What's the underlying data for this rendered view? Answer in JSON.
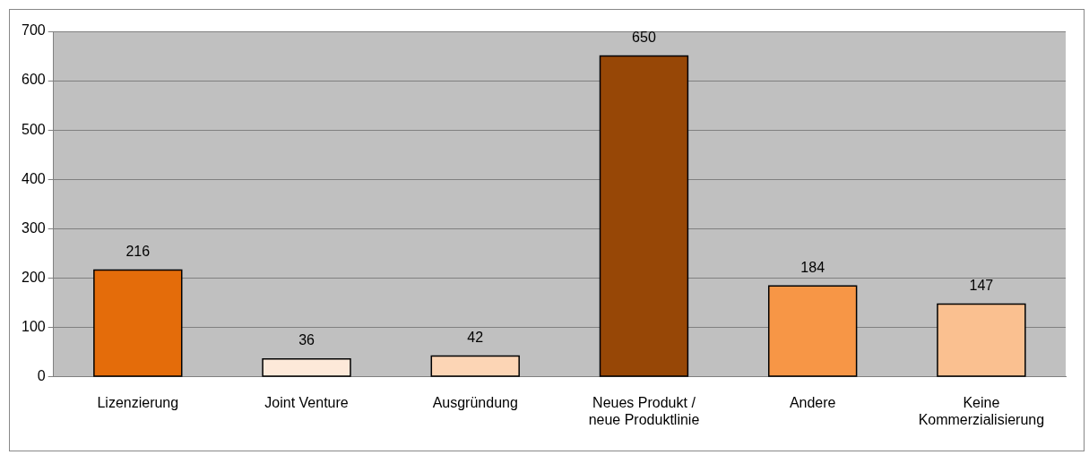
{
  "chart_data": {
    "type": "bar",
    "categories": [
      "Lizenzierung",
      "Joint Venture",
      "Ausgründung",
      "Neues Produkt /\nneue Produktlinie",
      "Andere",
      "Keine\nKommerzialisierung"
    ],
    "values": [
      216,
      36,
      42,
      650,
      184,
      147
    ],
    "colors": [
      "#e46c0a",
      "#fde9d9",
      "#fcd5b5",
      "#974706",
      "#f79646",
      "#fac090"
    ],
    "ylim": [
      0,
      700
    ],
    "yticks": [
      0,
      100,
      200,
      300,
      400,
      500,
      600,
      700
    ],
    "grid": "y",
    "data_labels": true,
    "legend": false
  }
}
